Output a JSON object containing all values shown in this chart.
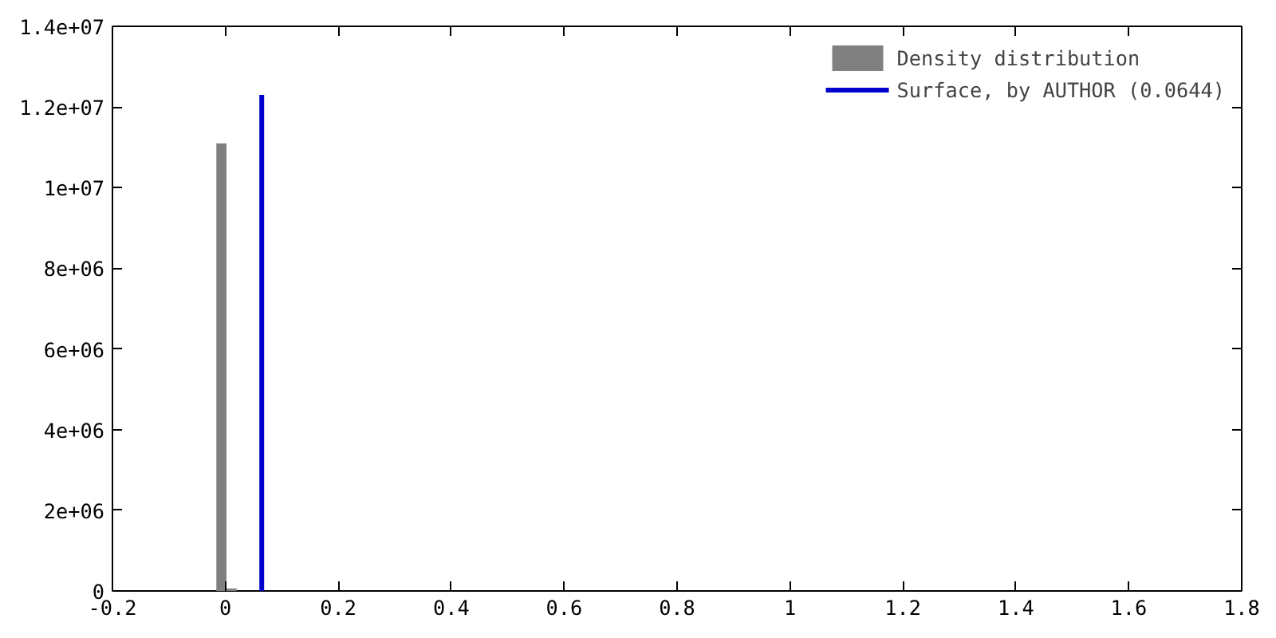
{
  "chart_data": {
    "type": "histogram",
    "bins": [
      -0.016,
      0.002,
      0.02
    ],
    "series": [
      {
        "name": "Density distribution",
        "color": "#808080",
        "values": [
          11100000,
          60000
        ]
      },
      {
        "type": "line",
        "name": "Surface, by AUTHOR (0.0644)",
        "color": "#0000cc",
        "x": [
          0.0644,
          0.0644
        ],
        "values": [
          0,
          12300000
        ]
      }
    ],
    "xlim": [
      -0.2,
      1.8
    ],
    "xticks": [
      -0.2,
      0,
      0.2,
      0.4,
      0.6,
      0.8,
      1,
      1.2,
      1.4,
      1.6,
      1.8
    ],
    "ylim": [
      0,
      14000000
    ],
    "yticks": [
      {
        "value": 0,
        "label": "0"
      },
      {
        "value": 2000000,
        "label": "2e+06"
      },
      {
        "value": 4000000,
        "label": "4e+06"
      },
      {
        "value": 6000000,
        "label": "6e+06"
      },
      {
        "value": 8000000,
        "label": "8e+06"
      },
      {
        "value": 10000000,
        "label": "1e+07"
      },
      {
        "value": 12000000,
        "label": "1.2e+07"
      },
      {
        "value": 14000000,
        "label": "1.4e+07"
      }
    ],
    "grid": false,
    "legend": "top right"
  }
}
